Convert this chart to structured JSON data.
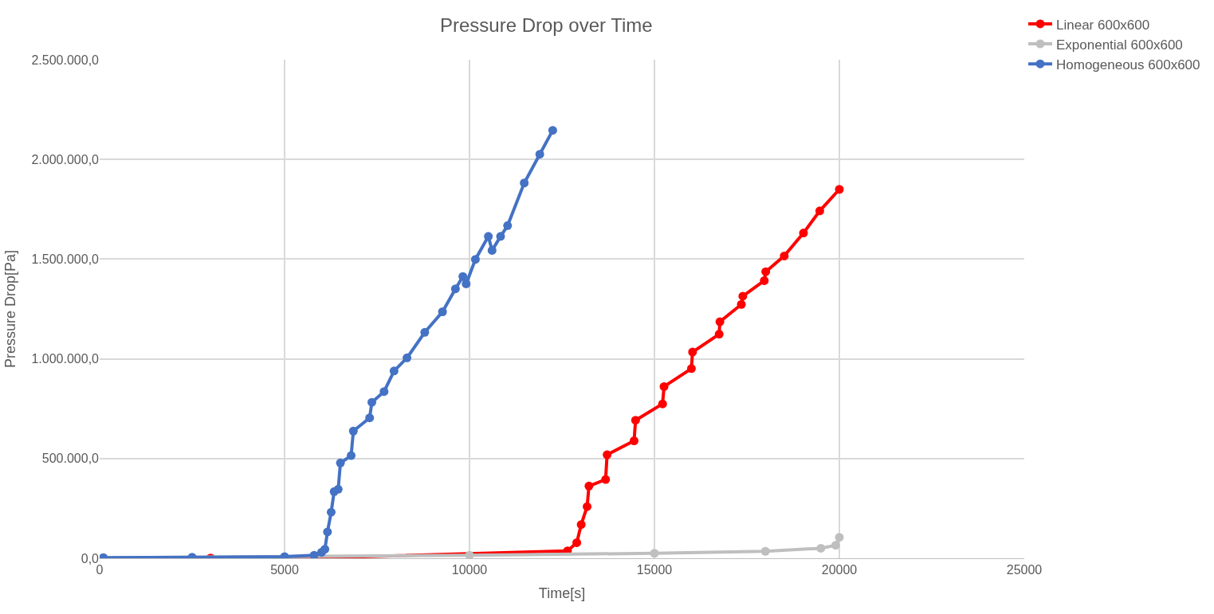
{
  "chart_data": {
    "type": "line",
    "title": "Pressure Drop over Time",
    "xlabel": "Time[s]",
    "ylabel": "Pressure Drop[Pa]",
    "xlim": [
      0,
      25000
    ],
    "xticks": [
      0,
      5000,
      10000,
      15000,
      20000,
      25000
    ],
    "ylim": [
      0,
      2500000
    ],
    "yticks": [
      {
        "value": 0,
        "label": "0,0"
      },
      {
        "value": 500000,
        "label": "500.000,0"
      },
      {
        "value": 1000000,
        "label": "1.000.000,0"
      },
      {
        "value": 1500000,
        "label": "1.500.000,0"
      },
      {
        "value": 2000000,
        "label": "2.000.000,0"
      },
      {
        "value": 2500000,
        "label": "2.500.000,0"
      }
    ],
    "grid": true,
    "legend": "top right",
    "marker": "circle",
    "line_style": "solid",
    "series": [
      {
        "name": "Linear 600x600",
        "color": "#ff0000",
        "x": [
          100,
          3000,
          6000,
          12650,
          12900,
          13020,
          13180,
          13230,
          13680,
          13720,
          14450,
          14490,
          15220,
          15260,
          16000,
          16030,
          16750,
          16770,
          17350,
          17390,
          17970,
          18010,
          18510,
          19030,
          19470,
          20000
        ],
        "values": [
          0,
          1000,
          2000,
          37000,
          78000,
          169000,
          259000,
          362000,
          395000,
          519000,
          589000,
          692000,
          774000,
          861000,
          951000,
          1034000,
          1124000,
          1186000,
          1273000,
          1314000,
          1392000,
          1437000,
          1516000,
          1631000,
          1742000,
          1850000
        ]
      },
      {
        "name": "Exponential 600x600",
        "color": "#bfbfbf",
        "x": [
          100,
          10000,
          15000,
          18000,
          19500,
          19900,
          20000
        ],
        "values": [
          2000,
          15000,
          25000,
          35000,
          50000,
          65000,
          105000
        ]
      },
      {
        "name": "Homogeneous 600x600",
        "color": "#4472c4",
        "x": [
          100,
          2500,
          5000,
          5800,
          6000,
          6090,
          6160,
          6260,
          6340,
          6450,
          6510,
          6800,
          6860,
          7300,
          7360,
          7690,
          7960,
          8310,
          8790,
          9270,
          9620,
          9820,
          9910,
          10160,
          10510,
          10610,
          10840,
          11030,
          11480,
          11900,
          12250
        ],
        "values": [
          3000,
          5000,
          8000,
          15000,
          30000,
          45000,
          132000,
          231000,
          334000,
          346000,
          478000,
          515000,
          638000,
          704000,
          782000,
          836000,
          939000,
          1005000,
          1133000,
          1236000,
          1351000,
          1413000,
          1376000,
          1499000,
          1614000,
          1544000,
          1614000,
          1668000,
          1882000,
          2026000,
          2146000
        ]
      }
    ]
  }
}
